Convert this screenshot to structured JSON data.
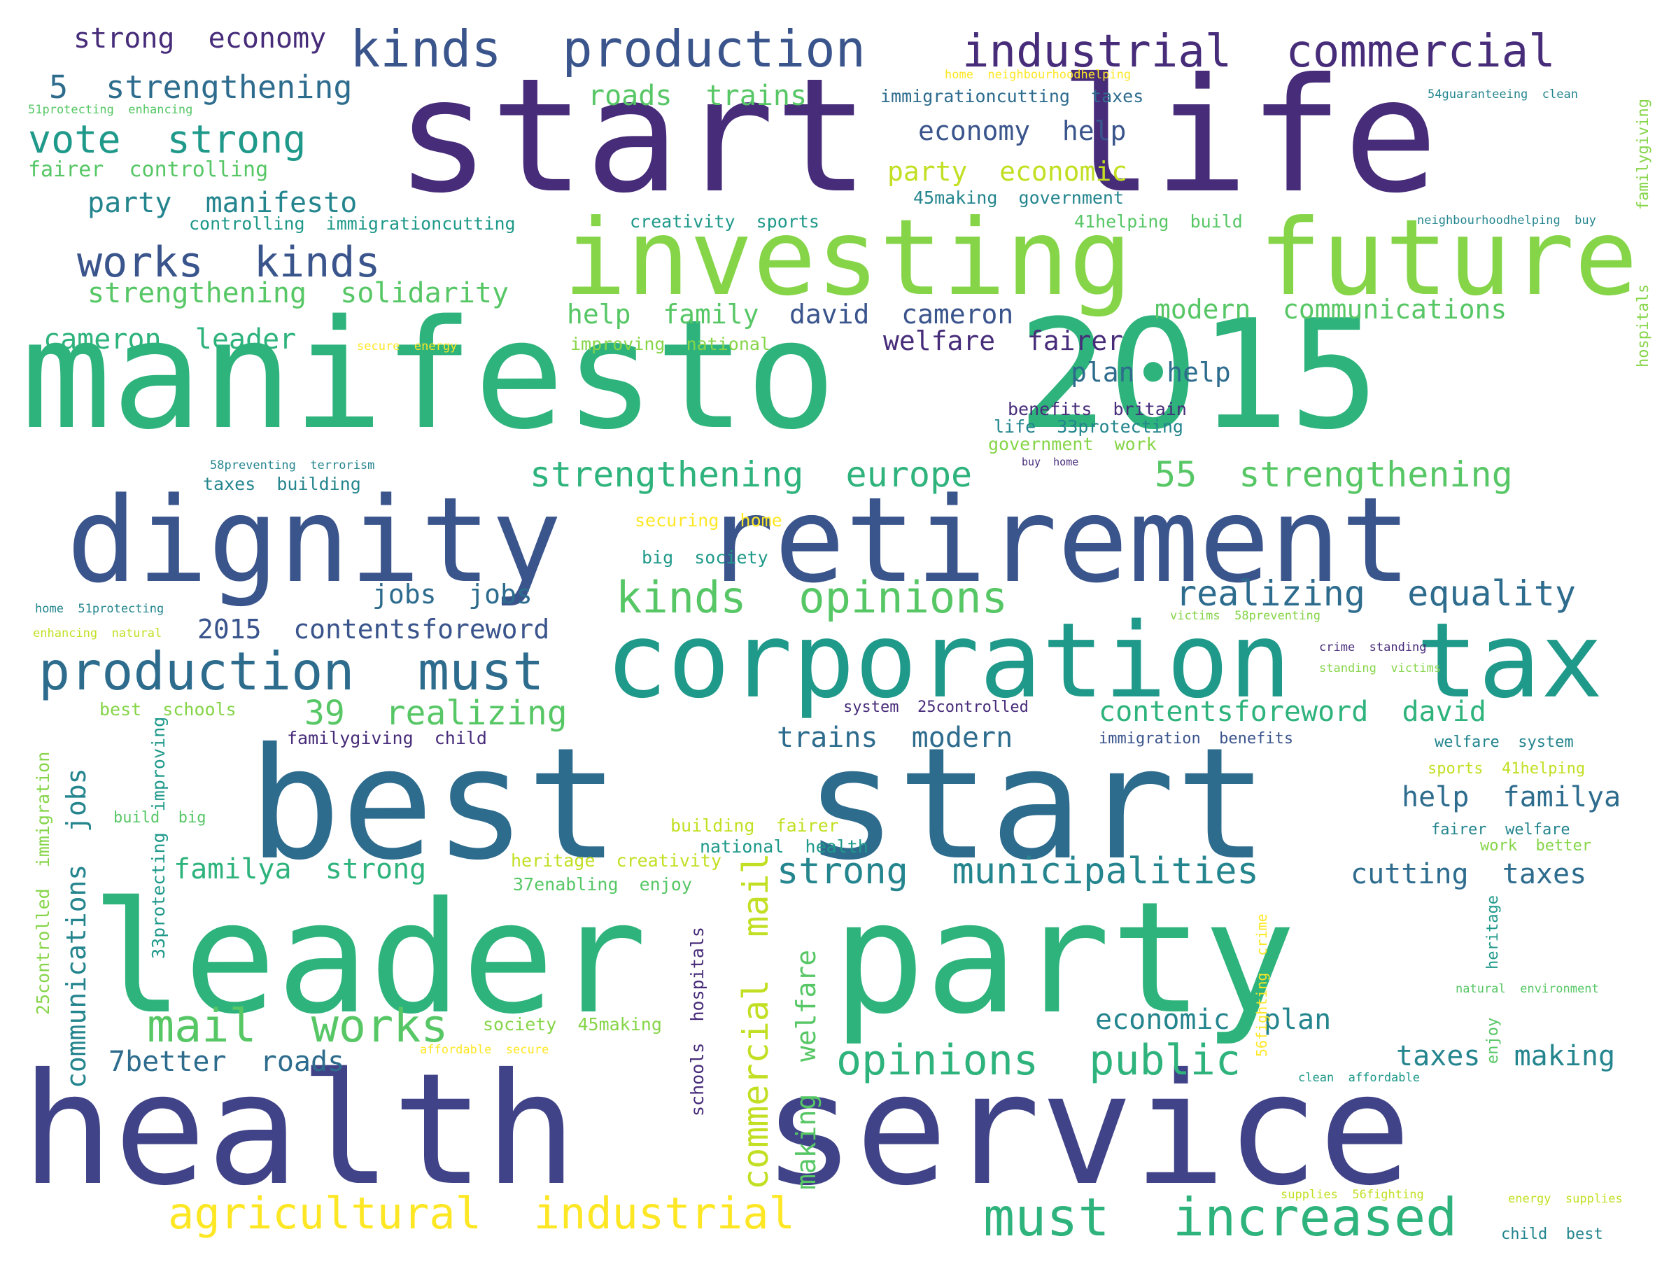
{
  "palette": {
    "dark_purple": "#472C7A",
    "indigo": "#404387",
    "slate_blue": "#3A548C",
    "steel_blue": "#2E6C8E",
    "teal": "#24858E",
    "teal_green": "#1F998A",
    "green": "#2EB37C",
    "light_green": "#57C766",
    "lime": "#86D549",
    "yellow_green": "#C2DF23",
    "yellow": "#FDE725"
  },
  "phrases": [
    {
      "text": "start life",
      "color": "dark_purple"
    },
    {
      "text": "manifesto 2015",
      "color": "green"
    },
    {
      "text": "investing future",
      "color": "lime"
    },
    {
      "text": "dignity retirement",
      "color": "slate_blue"
    },
    {
      "text": "corporation tax",
      "color": "teal_green"
    },
    {
      "text": "best start",
      "color": "steel_blue"
    },
    {
      "text": "leader party",
      "color": "green"
    },
    {
      "text": "health service",
      "color": "indigo"
    },
    {
      "text": "kinds production",
      "color": "slate_blue"
    },
    {
      "text": "industrial commercial",
      "color": "dark_purple"
    },
    {
      "text": "strong economy",
      "color": "dark_purple"
    },
    {
      "text": "5 strengthening",
      "color": "steel_blue"
    },
    {
      "text": "vote strong",
      "color": "teal_green"
    },
    {
      "text": "works kinds",
      "color": "slate_blue"
    },
    {
      "text": "party manifesto",
      "color": "teal"
    },
    {
      "text": "strengthening solidarity",
      "color": "light_green"
    },
    {
      "text": "cameron leader",
      "color": "green"
    },
    {
      "text": "fairer controlling",
      "color": "light_green"
    },
    {
      "text": "controlling immigrationcutting",
      "color": "teal_green"
    },
    {
      "text": "roads trains",
      "color": "light_green"
    },
    {
      "text": "economy help",
      "color": "slate_blue"
    },
    {
      "text": "party economic",
      "color": "yellow_green"
    },
    {
      "text": "help family",
      "color": "light_green"
    },
    {
      "text": "david cameron",
      "color": "slate_blue"
    },
    {
      "text": "modern communications",
      "color": "light_green"
    },
    {
      "text": "welfare fairer",
      "color": "dark_purple"
    },
    {
      "text": "plan help",
      "color": "steel_blue"
    },
    {
      "text": "strengthening europe",
      "color": "green"
    },
    {
      "text": "55 strengthening",
      "color": "light_green"
    },
    {
      "text": "kinds opinions",
      "color": "light_green"
    },
    {
      "text": "realizing equality",
      "color": "steel_blue"
    },
    {
      "text": "jobs jobs",
      "color": "steel_blue"
    },
    {
      "text": "2015 contentsforeword",
      "color": "slate_blue"
    },
    {
      "text": "production must",
      "color": "steel_blue"
    },
    {
      "text": "39 realizing",
      "color": "light_green"
    },
    {
      "text": "contentsforeword david",
      "color": "green"
    },
    {
      "text": "trains modern",
      "color": "steel_blue"
    },
    {
      "text": "help familya",
      "color": "steel_blue"
    },
    {
      "text": "strong municipalities",
      "color": "teal"
    },
    {
      "text": "cutting taxes",
      "color": "steel_blue"
    },
    {
      "text": "mail works",
      "color": "light_green"
    },
    {
      "text": "familya strong",
      "color": "green"
    },
    {
      "text": "economic plan",
      "color": "teal"
    },
    {
      "text": "opinions public",
      "color": "green"
    },
    {
      "text": "taxes making",
      "color": "teal"
    },
    {
      "text": "7better roads",
      "color": "steel_blue"
    },
    {
      "text": "agricultural industrial",
      "color": "yellow"
    },
    {
      "text": "must increased",
      "color": "green"
    },
    {
      "text": "commercial mail",
      "color": "yellow_green"
    },
    {
      "text": "making welfare",
      "color": "light_green"
    },
    {
      "text": "communications jobs",
      "color": "teal"
    },
    {
      "text": "schools hospitals",
      "color": "dark_purple"
    },
    {
      "text": "25controlled immigration",
      "color": "lime"
    },
    {
      "text": "33protecting improving",
      "color": "teal_green"
    },
    {
      "text": "hospitals",
      "color": "lime"
    },
    {
      "text": "familygiving",
      "color": "lime"
    },
    {
      "text": "heritage",
      "color": "teal_green"
    },
    {
      "text": "enjoy",
      "color": "light_green"
    },
    {
      "text": "56fighting crime",
      "color": "yellow"
    },
    {
      "text": "immigrationcutting taxes",
      "color": "steel_blue"
    },
    {
      "text": "45making government",
      "color": "teal"
    },
    {
      "text": "creativity sports",
      "color": "teal_green"
    },
    {
      "text": "41helping build",
      "color": "light_green"
    },
    {
      "text": "improving national",
      "color": "lime"
    },
    {
      "text": "benefits britain",
      "color": "dark_purple"
    },
    {
      "text": "life 33protecting",
      "color": "teal"
    },
    {
      "text": "government work",
      "color": "lime"
    },
    {
      "text": "taxes building",
      "color": "teal"
    },
    {
      "text": "securing home",
      "color": "yellow"
    },
    {
      "text": "big society",
      "color": "teal_green"
    },
    {
      "text": "best schools",
      "color": "lime"
    },
    {
      "text": "familygiving child",
      "color": "dark_purple"
    },
    {
      "text": "system 25controlled",
      "color": "dark_purple"
    },
    {
      "text": "immigration benefits",
      "color": "slate_blue"
    },
    {
      "text": "welfare system",
      "color": "teal"
    },
    {
      "text": "sports 41helping",
      "color": "yellow_green"
    },
    {
      "text": "build big",
      "color": "light_green"
    },
    {
      "text": "building fairer",
      "color": "yellow_green"
    },
    {
      "text": "national health",
      "color": "teal_green"
    },
    {
      "text": "heritage creativity",
      "color": "yellow_green"
    },
    {
      "text": "37enabling enjoy",
      "color": "light_green"
    },
    {
      "text": "fairer welfare",
      "color": "teal"
    },
    {
      "text": "work better",
      "color": "lime"
    },
    {
      "text": "society 45making",
      "color": "lime"
    },
    {
      "text": "home neighbourhoodhelping",
      "color": "yellow"
    },
    {
      "text": "51protecting enhancing",
      "color": "light_green"
    },
    {
      "text": "54guaranteeing clean",
      "color": "teal"
    },
    {
      "text": "neighbourhoodhelping buy",
      "color": "teal"
    },
    {
      "text": "secure energy",
      "color": "yellow"
    },
    {
      "text": "58preventing terrorism",
      "color": "teal"
    },
    {
      "text": "buy home",
      "color": "dark_purple"
    },
    {
      "text": "home 51protecting",
      "color": "teal"
    },
    {
      "text": "enhancing natural",
      "color": "yellow_green"
    },
    {
      "text": "victims 58preventing",
      "color": "lime"
    },
    {
      "text": "crime standing",
      "color": "dark_purple"
    },
    {
      "text": "standing victims",
      "color": "lime"
    },
    {
      "text": "affordable secure",
      "color": "yellow"
    },
    {
      "text": "clean affordable",
      "color": "teal_green"
    },
    {
      "text": "natural environment",
      "color": "light_green"
    },
    {
      "text": "supplies 56fighting",
      "color": "yellow_green"
    },
    {
      "text": "energy supplies",
      "color": "yellow_green"
    },
    {
      "text": "child best",
      "color": "teal"
    }
  ]
}
